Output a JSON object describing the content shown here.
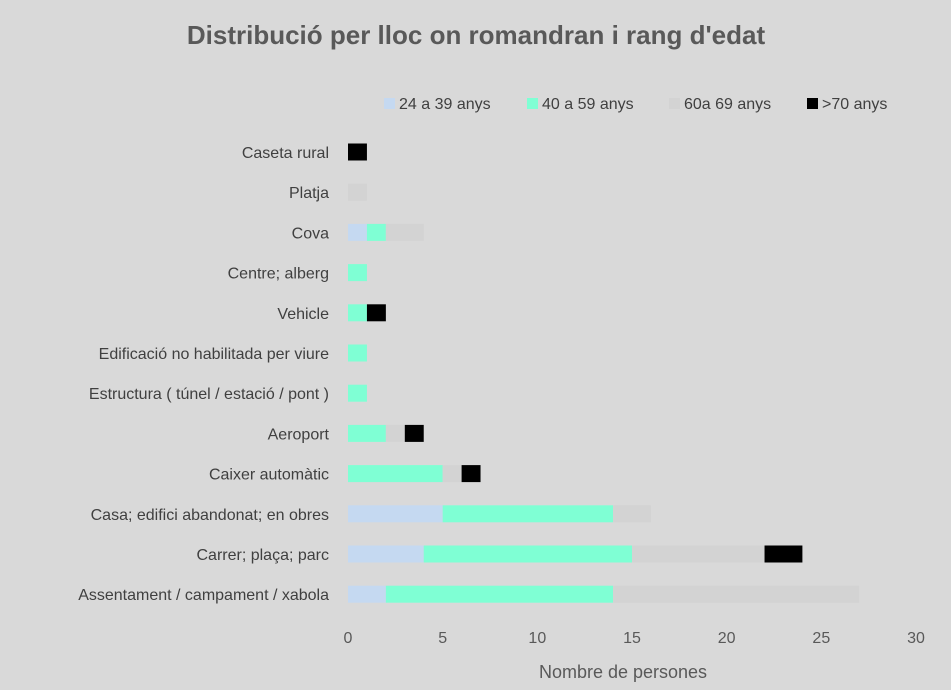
{
  "chart_data": {
    "type": "bar",
    "orientation": "horizontal",
    "stacked": true,
    "title": "Distribució per lloc on romandran i rang d'edat",
    "xlabel": "Nombre de persones",
    "ylabel": "",
    "xlim": [
      0,
      30
    ],
    "xticks": [
      "0",
      "5",
      "10",
      "15",
      "20",
      "25",
      "30"
    ],
    "grid": false,
    "legend_position": "top",
    "categories": [
      "Caseta rural",
      "Platja",
      "Cova",
      "Centre; alberg",
      "Vehicle",
      "Edificació no habilitada per viure",
      "Estructura ( túnel / estació / pont )",
      "Aeroport",
      "Caixer automàtic",
      "Casa; edifici abandonat; en obres",
      "Carrer; plaça; parc",
      "Assentament / campament / xabola"
    ],
    "series": [
      {
        "name": "24 a 39 anys",
        "color": "#c5d9f1",
        "values": [
          0,
          0,
          1,
          0,
          0,
          0,
          0,
          0,
          0,
          5,
          4,
          2
        ]
      },
      {
        "name": "40 a 59 anys",
        "color": "#7fffd4",
        "values": [
          0,
          0,
          1,
          1,
          1,
          1,
          1,
          2,
          5,
          9,
          11,
          12
        ]
      },
      {
        "name": "60a 69 anys",
        "color": "#d3d3d3",
        "values": [
          0,
          1,
          2,
          0,
          0,
          0,
          0,
          1,
          1,
          2,
          7,
          13
        ]
      },
      {
        "name": ">70 anys",
        "color": "#000000",
        "values": [
          1,
          0,
          0,
          0,
          1,
          0,
          0,
          1,
          1,
          0,
          2,
          0
        ]
      }
    ]
  }
}
